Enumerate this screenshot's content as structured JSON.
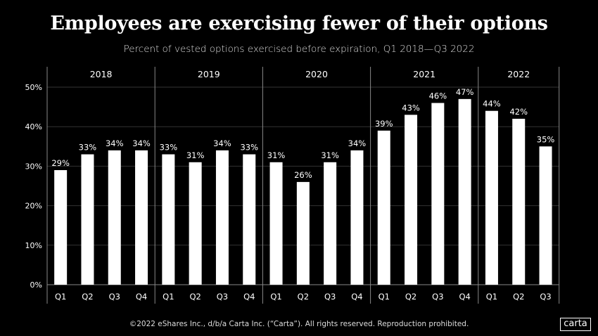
{
  "title": "Employees are exercising fewer of their options",
  "subtitle": "Percent of vested options exercised before expiration, Q1 2018—Q3 2022",
  "footer": "©2022 eShares Inc., d/b/a Carta Inc. (“Carta”). All rights reserved. Reproduction prohibited.",
  "logo": "carta",
  "chart_data": {
    "type": "bar",
    "title": "Employees are exercising fewer of their options",
    "subtitle": "Percent of vested options exercised before expiration, Q1 2018—Q3 2022",
    "ylim": [
      0,
      50
    ],
    "yticks": [
      "0%",
      "10%",
      "20%",
      "30%",
      "40%",
      "50%"
    ],
    "ytick_values": [
      0,
      10,
      20,
      30,
      40,
      50
    ],
    "grid": true,
    "bar_color": "#ffffff",
    "groups": [
      {
        "label": "2018",
        "categories": [
          "Q1",
          "Q2",
          "Q3",
          "Q4"
        ],
        "values": [
          29,
          33,
          34,
          34
        ],
        "labels": [
          "29%",
          "33%",
          "34%",
          "34%"
        ]
      },
      {
        "label": "2019",
        "categories": [
          "Q1",
          "Q2",
          "Q3",
          "Q4"
        ],
        "values": [
          33,
          31,
          34,
          33
        ],
        "labels": [
          "33%",
          "31%",
          "34%",
          "33%"
        ]
      },
      {
        "label": "2020",
        "categories": [
          "Q1",
          "Q2",
          "Q3",
          "Q4"
        ],
        "values": [
          31,
          26,
          31,
          34
        ],
        "labels": [
          "31%",
          "26%",
          "31%",
          "34%"
        ]
      },
      {
        "label": "2021",
        "categories": [
          "Q1",
          "Q2",
          "Q3",
          "Q4"
        ],
        "values": [
          39,
          43,
          46,
          47
        ],
        "labels": [
          "39%",
          "43%",
          "46%",
          "47%"
        ]
      },
      {
        "label": "2022",
        "categories": [
          "Q1",
          "Q2",
          "Q3"
        ],
        "values": [
          44,
          42,
          35
        ],
        "labels": [
          "44%",
          "42%",
          "35%"
        ]
      }
    ]
  }
}
